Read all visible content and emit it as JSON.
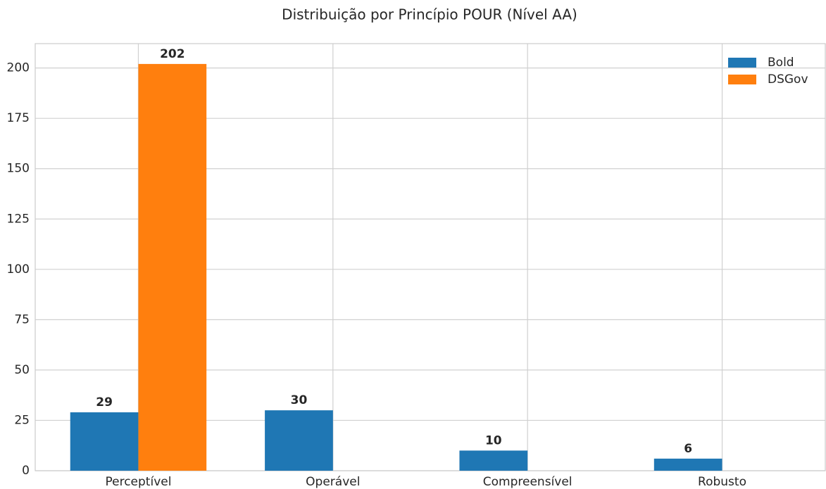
{
  "chart_data": {
    "type": "bar",
    "title": "Distribuição por Princípio POUR (Nível AA)",
    "categories": [
      "Perceptível",
      "Operável",
      "Compreensível",
      "Robusto"
    ],
    "series": [
      {
        "name": "Bold",
        "color": "#1f77b4",
        "values": [
          29,
          30,
          10,
          6
        ]
      },
      {
        "name": "DSGov",
        "color": "#ff7f0e",
        "values": [
          202,
          0,
          0,
          0
        ]
      }
    ],
    "ylim": [
      0,
      212.1
    ],
    "yticks": [
      0,
      25,
      50,
      75,
      100,
      125,
      150,
      175,
      200
    ],
    "grid": true,
    "legend": "upper right"
  }
}
